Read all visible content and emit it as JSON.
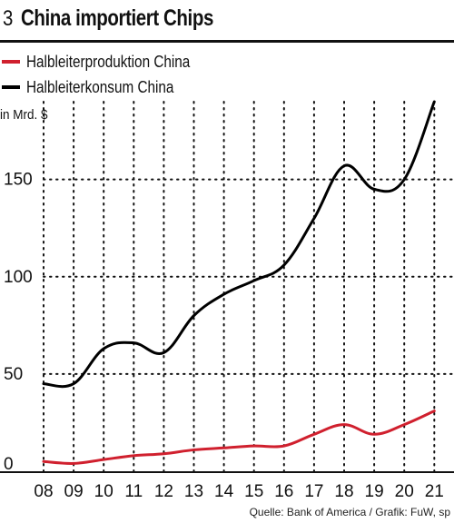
{
  "header": {
    "figure_number": "3",
    "title": "China importiert Chips"
  },
  "legend": [
    {
      "label": "Halbleiterproduktion China",
      "color": "#d0202e"
    },
    {
      "label": "Halbleiterkonsum China",
      "color": "#000000"
    }
  ],
  "source": "Quelle: Bank of America / Grafik: FuW, sp",
  "chart_data": {
    "type": "line",
    "ylabel": "in Mrd. $",
    "ylim": [
      0,
      190
    ],
    "yticks": [
      0,
      50,
      100,
      150
    ],
    "xlim": [
      2008,
      2021.5
    ],
    "x": [
      2008,
      2009,
      2010,
      2011,
      2012,
      2013,
      2014,
      2015,
      2016,
      2017,
      2018,
      2019,
      2020,
      2021
    ],
    "xtick_labels": [
      "08",
      "09",
      "10",
      "11",
      "12",
      "13",
      "14",
      "15",
      "16",
      "17",
      "18",
      "19",
      "20",
      "21"
    ],
    "grid": {
      "style": "dotted",
      "x": true,
      "y": true
    },
    "series": [
      {
        "name": "Halbleiterproduktion China",
        "color": "#d0202e",
        "values": [
          5,
          4,
          6,
          8,
          9,
          11,
          12,
          13,
          13,
          19,
          24,
          19,
          24,
          31
        ]
      },
      {
        "name": "Halbleiterkonsum China",
        "color": "#000000",
        "values": [
          45,
          45,
          63,
          66,
          61,
          80,
          91,
          98,
          106,
          130,
          157,
          145,
          150,
          190
        ]
      }
    ]
  }
}
